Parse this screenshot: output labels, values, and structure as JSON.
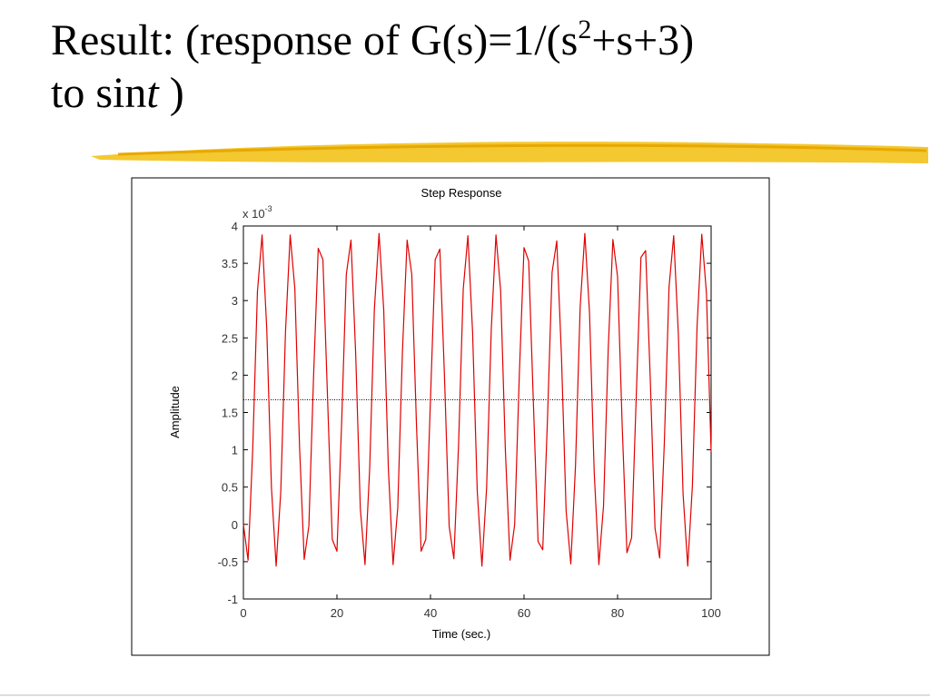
{
  "slide": {
    "title_line1": [
      "Result: (response of G(s)=1/(s",
      "2",
      "+s+3)"
    ],
    "title_line2": [
      "to sin",
      "t",
      " )"
    ]
  },
  "chart_data": {
    "type": "line",
    "title": "Step Response",
    "x_label": "Time (sec.)",
    "y_label": "Amplitude",
    "y_multiplier": {
      "base": "x 10",
      "exponent": "-3"
    },
    "xlim": [
      0,
      100
    ],
    "xticks": [
      0,
      20,
      40,
      60,
      80,
      100
    ],
    "ylim": [
      -1,
      4
    ],
    "yticks": [
      -1,
      -0.5,
      0,
      0.5,
      1,
      1.5,
      2,
      2.5,
      3,
      3.5,
      4
    ],
    "grid": false,
    "reference_line": 1.67,
    "reference_color": "#000",
    "x": [
      0,
      1,
      2,
      3,
      4,
      5,
      6,
      7,
      8,
      9,
      10,
      11,
      12,
      13,
      14,
      15,
      16,
      17,
      18,
      19,
      20,
      21,
      22,
      23,
      24,
      25,
      26,
      27,
      28,
      29,
      30,
      31,
      32,
      33,
      34,
      35,
      36,
      37,
      38,
      39,
      40,
      41,
      42,
      43,
      44,
      45,
      46,
      47,
      48,
      49,
      50,
      51,
      52,
      53,
      54,
      55,
      56,
      57,
      58,
      59,
      60,
      61,
      62,
      63,
      64,
      65,
      66,
      67,
      68,
      69,
      70,
      71,
      72,
      73,
      74,
      75,
      76,
      77,
      78,
      79,
      80,
      81,
      82,
      83,
      84,
      85,
      86,
      87,
      88,
      89,
      90,
      91,
      92,
      93,
      94,
      95,
      96,
      97,
      98,
      99,
      100
    ],
    "series": [
      {
        "color": "#e00000",
        "values": [
          0.0,
          -0.48,
          1.02,
          3.12,
          3.88,
          2.61,
          0.49,
          -0.56,
          0.45,
          2.58,
          3.88,
          3.16,
          1.05,
          -0.47,
          -0.02,
          1.98,
          3.7,
          3.55,
          1.68,
          -0.2,
          -0.36,
          1.35,
          3.35,
          3.81,
          2.3,
          0.21,
          -0.54,
          0.75,
          2.88,
          3.9,
          2.88,
          0.74,
          -0.54,
          0.22,
          2.31,
          3.81,
          3.35,
          1.34,
          -0.36,
          -0.2,
          1.68,
          3.55,
          3.69,
          1.97,
          -0.03,
          -0.46,
          1.06,
          3.15,
          3.87,
          2.58,
          0.44,
          -0.56,
          0.49,
          2.62,
          3.88,
          3.13,
          1.01,
          -0.48,
          0.0,
          2.02,
          3.71,
          3.53,
          1.63,
          -0.23,
          -0.34,
          1.39,
          3.38,
          3.8,
          2.26,
          0.18,
          -0.53,
          0.78,
          2.91,
          3.9,
          2.84,
          0.7,
          -0.54,
          0.25,
          2.35,
          3.82,
          3.32,
          1.3,
          -0.38,
          -0.18,
          1.73,
          3.58,
          3.67,
          1.93,
          -0.05,
          -0.45,
          1.1,
          3.18,
          3.87,
          2.54,
          0.41,
          -0.56,
          0.52,
          2.66,
          3.89,
          3.1,
          0.97
        ]
      }
    ]
  }
}
